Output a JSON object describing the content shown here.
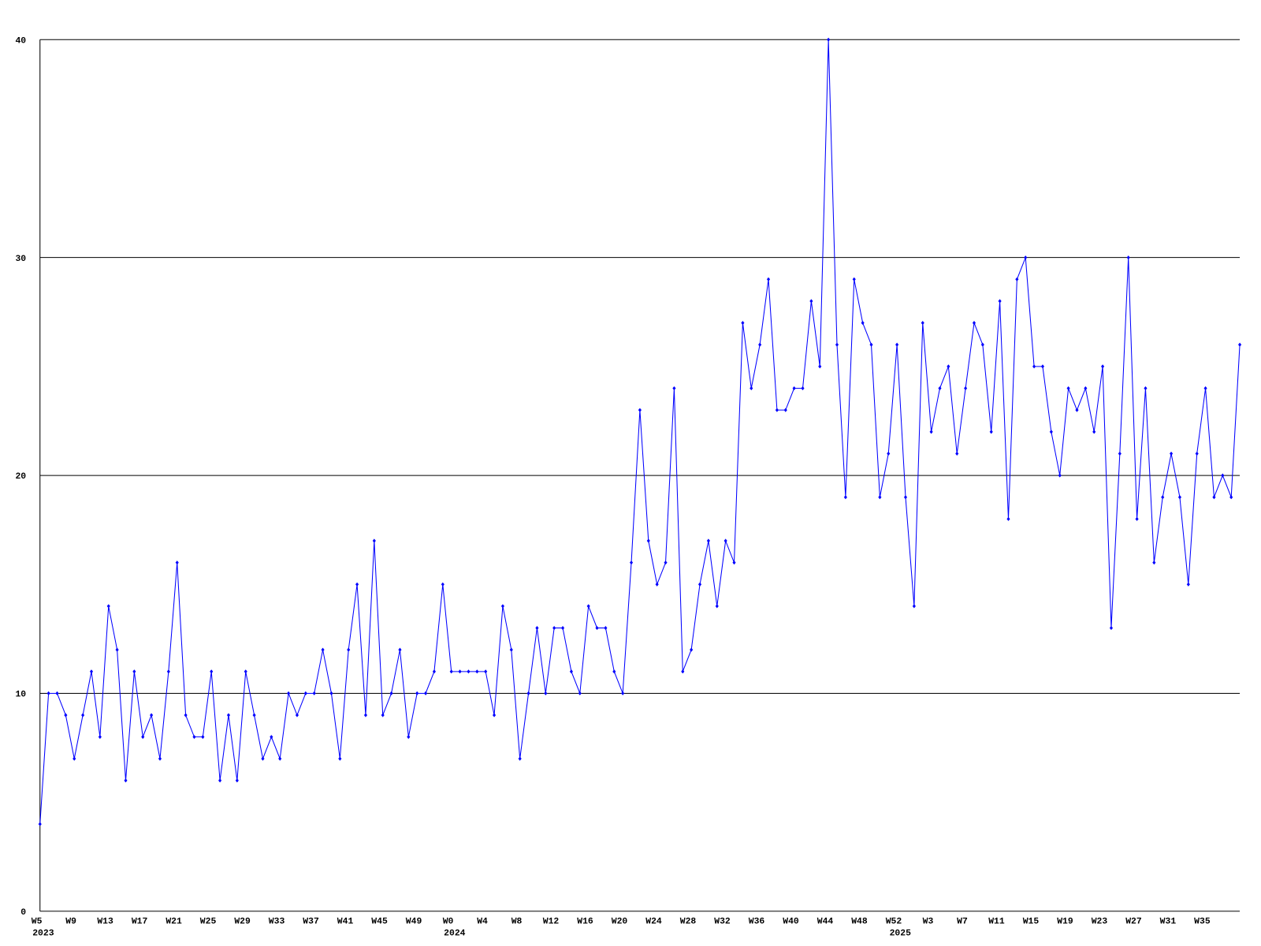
{
  "chart_data": {
    "type": "line",
    "color": "#0000ff",
    "categories": [
      [
        "W5",
        "2023"
      ],
      null,
      null,
      null,
      "W9",
      null,
      null,
      null,
      "W13",
      null,
      null,
      null,
      "W17",
      null,
      null,
      null,
      "W21",
      null,
      null,
      null,
      "W25",
      null,
      null,
      null,
      "W29",
      null,
      null,
      null,
      "W33",
      null,
      null,
      null,
      "W37",
      null,
      null,
      null,
      "W41",
      null,
      null,
      null,
      "W45",
      null,
      null,
      null,
      "W49",
      null,
      null,
      null,
      [
        "W0",
        "2024"
      ],
      null,
      null,
      null,
      "W4",
      null,
      null,
      null,
      "W8",
      null,
      null,
      null,
      "W12",
      null,
      null,
      null,
      "W16",
      null,
      null,
      null,
      "W20",
      null,
      null,
      null,
      "W24",
      null,
      null,
      null,
      "W28",
      null,
      null,
      null,
      "W32",
      null,
      null,
      null,
      "W36",
      null,
      null,
      null,
      "W40",
      null,
      null,
      null,
      "W44",
      null,
      null,
      null,
      "W48",
      null,
      null,
      null,
      [
        "W52",
        "2025"
      ],
      null,
      null,
      null,
      "W3",
      null,
      null,
      null,
      "W7",
      null,
      null,
      null,
      "W11",
      null,
      null,
      null,
      "W15",
      null,
      null,
      null,
      "W19",
      null,
      null,
      null,
      "W23",
      null,
      null,
      null,
      "W27",
      null,
      null,
      null,
      "W31",
      null,
      null,
      null,
      "W35",
      null,
      null,
      null,
      null
    ],
    "values": [
      4,
      10,
      10,
      9,
      7,
      9,
      11,
      8,
      14,
      12,
      6,
      11,
      8,
      9,
      7,
      11,
      16,
      9,
      8,
      8,
      11,
      6,
      9,
      6,
      11,
      9,
      7,
      8,
      7,
      10,
      9,
      10,
      10,
      12,
      10,
      7,
      12,
      15,
      9,
      17,
      9,
      10,
      12,
      8,
      10,
      10,
      11,
      15,
      11,
      11,
      11,
      11,
      11,
      9,
      14,
      12,
      7,
      10,
      13,
      10,
      13,
      13,
      11,
      10,
      14,
      13,
      13,
      11,
      10,
      16,
      23,
      17,
      15,
      16,
      24,
      11,
      12,
      15,
      17,
      14,
      17,
      16,
      27,
      24,
      26,
      29,
      23,
      23,
      24,
      24,
      28,
      25,
      40,
      26,
      19,
      29,
      27,
      26,
      19,
      21,
      26,
      19,
      14,
      27,
      22,
      24,
      25,
      21,
      24,
      27,
      26,
      22,
      28,
      18,
      29,
      30,
      25,
      25,
      22,
      20,
      24,
      23,
      24,
      22,
      25,
      13,
      21,
      30,
      18,
      24,
      16,
      19,
      21,
      19,
      15,
      21,
      24,
      19,
      20,
      19,
      26
    ],
    "ylim": [
      0,
      40
    ],
    "yticks": [
      0,
      10,
      20,
      30,
      40
    ],
    "grid": true
  }
}
